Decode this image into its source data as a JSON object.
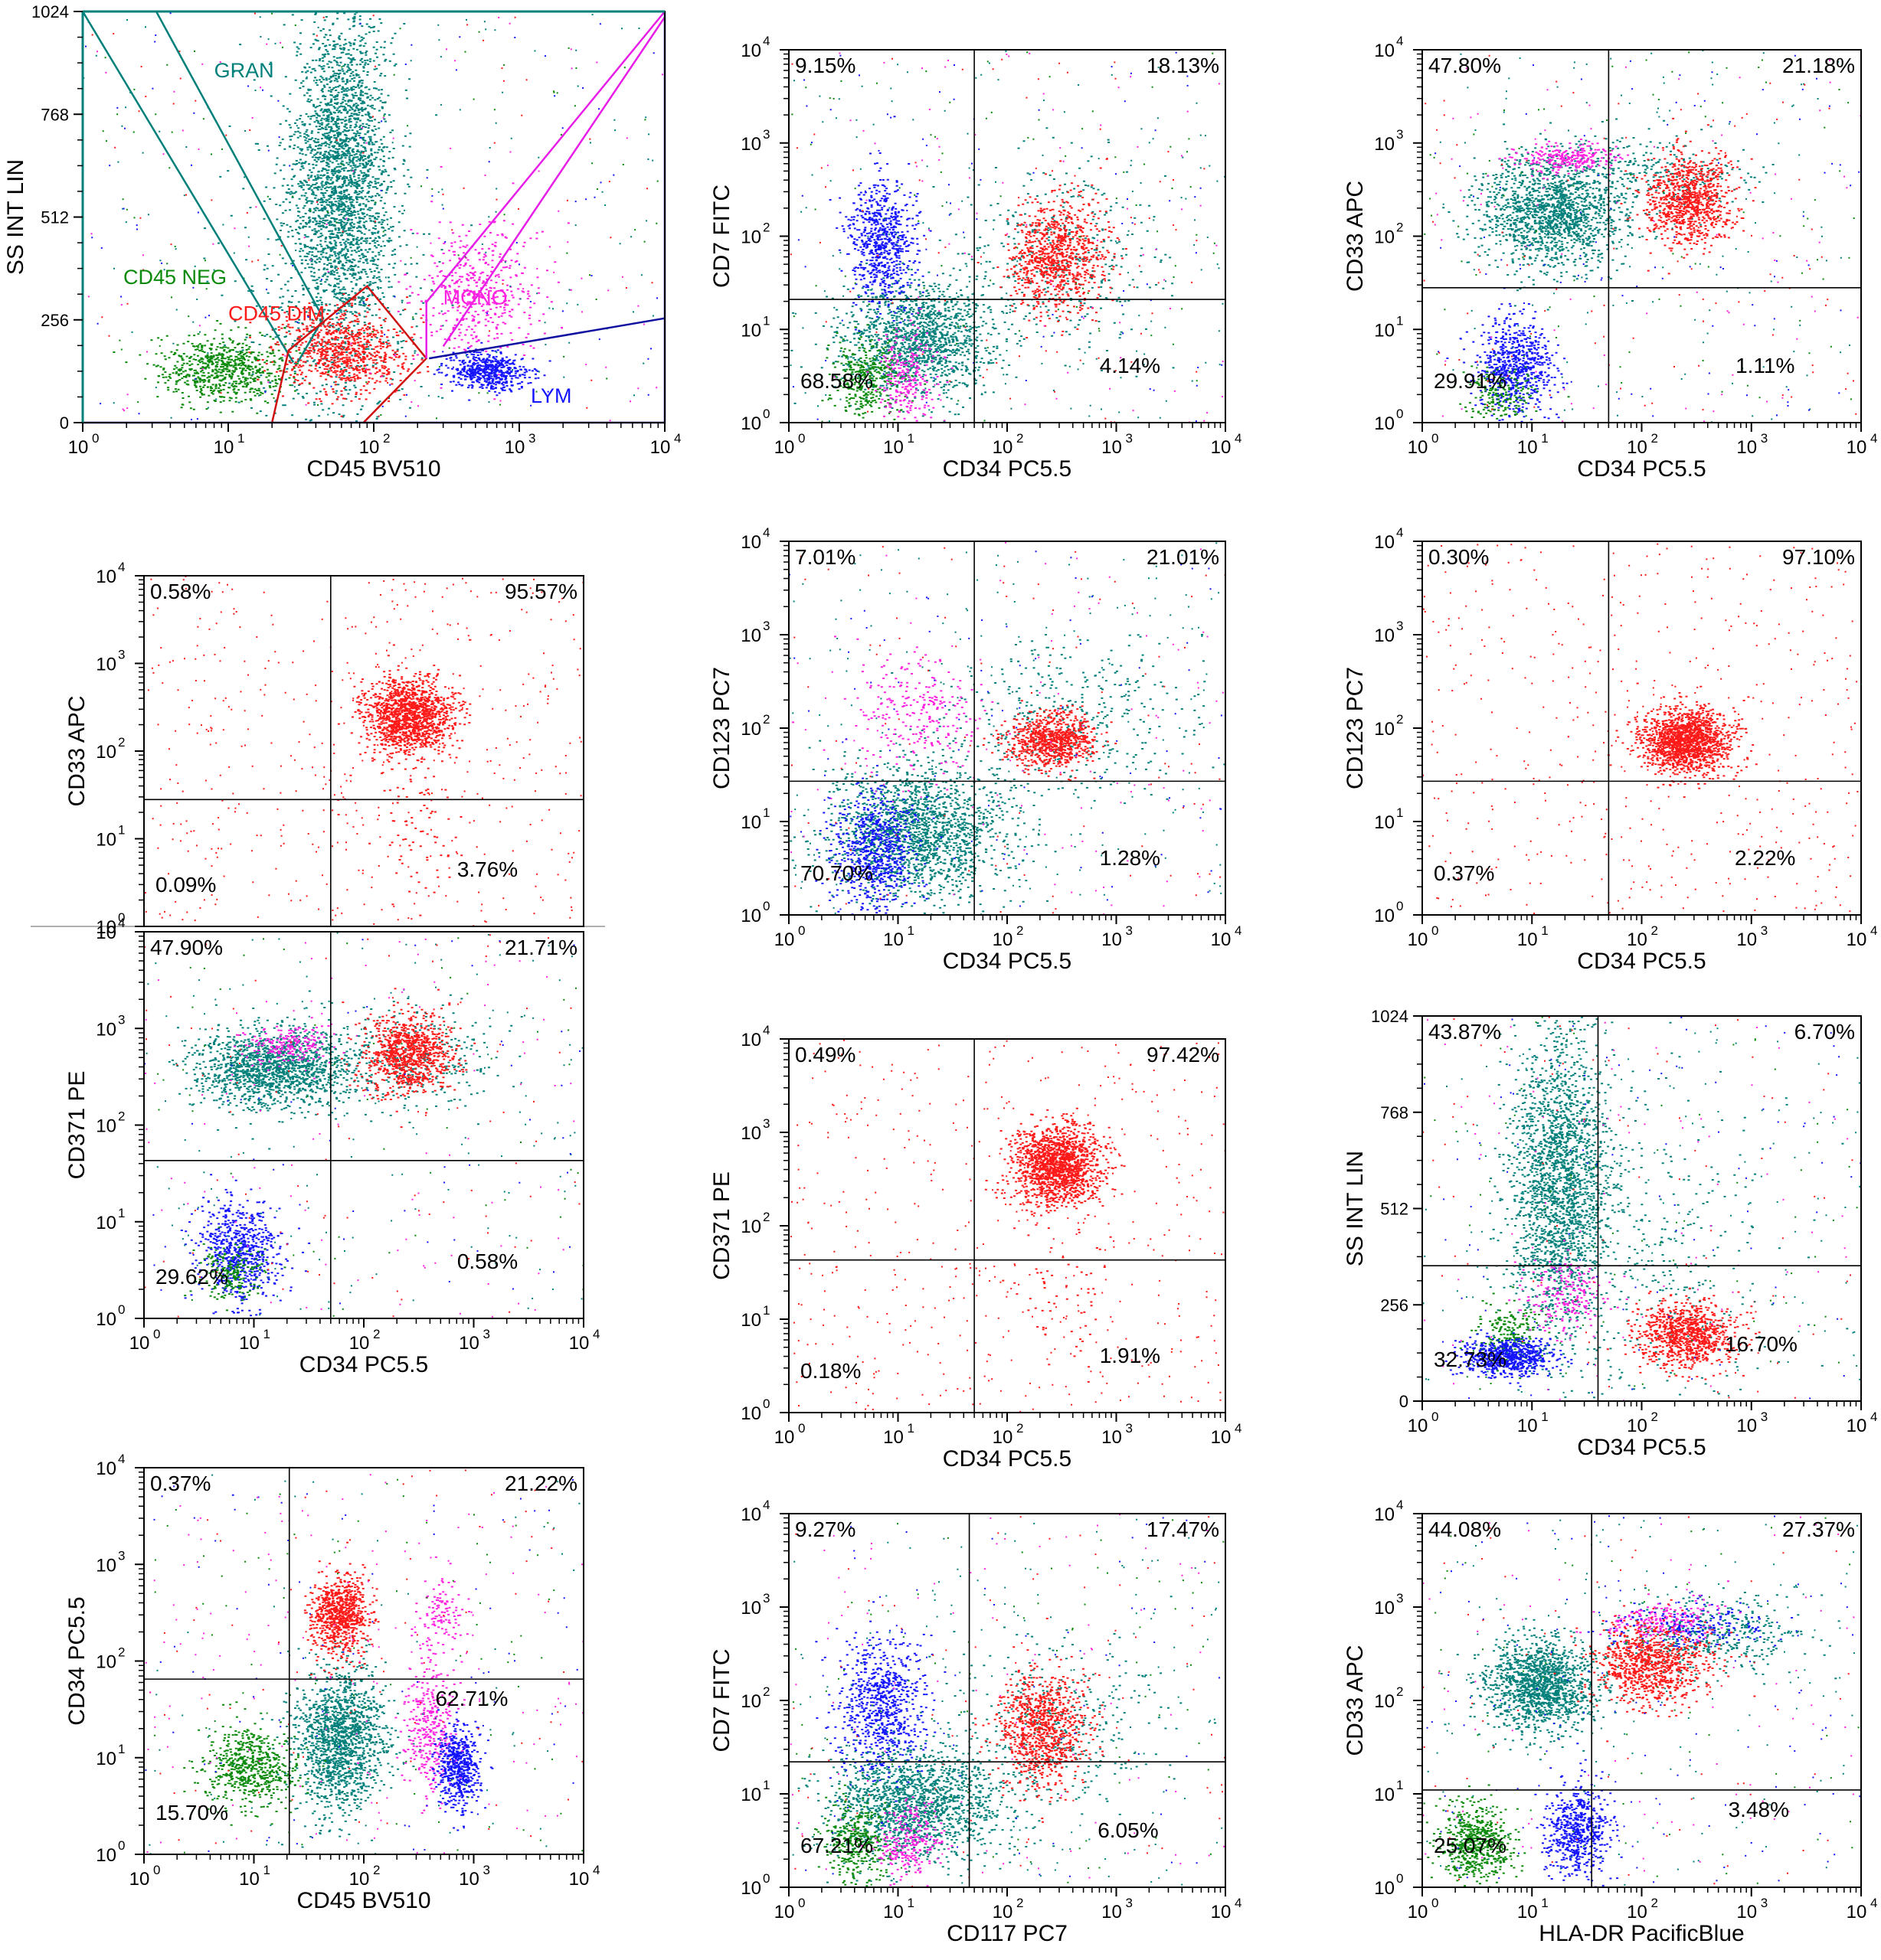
{
  "colors": {
    "GRAN": "#00807a",
    "NEG": "#0a8a0a",
    "DIM": "#ff1a1a",
    "MONO": "#ff22e0",
    "LYM": "#1414ff",
    "gate_gran": "#00807a",
    "gate_mono": "#e81ee8",
    "gate_dim": "#d01010",
    "gate_lym": "#1010a0",
    "axis": "#000000"
  },
  "chart_data": [
    {
      "type": "scatter",
      "id": "p1",
      "xlabel": "CD45 BV510",
      "ylabel": "SS INT LIN",
      "xscale": "log",
      "yscale": "lin",
      "xlim": [
        1,
        10000
      ],
      "ylim": [
        0,
        1024
      ],
      "xticks": [
        {
          "v": 1,
          "m": "10",
          "e": "0"
        },
        {
          "v": 10,
          "m": "10",
          "e": "1"
        },
        {
          "v": 100,
          "m": "10",
          "e": "2"
        },
        {
          "v": 1000,
          "m": "10",
          "e": "3"
        },
        {
          "v": 10000,
          "m": "10",
          "e": "4"
        }
      ],
      "yticks": [
        {
          "v": 0,
          "t": "0"
        },
        {
          "v": 256,
          "t": "256"
        },
        {
          "v": 512,
          "t": "512"
        },
        {
          "v": 768,
          "t": "768"
        },
        {
          "v": 1024,
          "t": "1024"
        }
      ],
      "frame_color": "#00807a",
      "gates": [
        {
          "name": "GRAN",
          "color": "gate_gran",
          "points": [
            [
              1,
              1024
            ],
            [
              3.2,
              1024
            ],
            [
              45,
              260
            ],
            [
              30,
              150
            ]
          ]
        },
        {
          "name": "GRAN-NEG",
          "color": "gate_gran",
          "points": [
            [
              1,
              1024
            ],
            [
              28,
              150
            ]
          ]
        },
        {
          "name": "DIM",
          "color": "gate_dim",
          "points": [
            [
              20,
              0
            ],
            [
              26,
              180
            ],
            [
              90,
              340
            ],
            [
              230,
              160
            ],
            [
              85,
              0
            ]
          ]
        },
        {
          "name": "MONO",
          "color": "gate_mono",
          "points": [
            [
              230,
              160
            ],
            [
              230,
              300
            ],
            [
              10000,
              1024
            ]
          ]
        },
        {
          "name": "MONO-LOW",
          "color": "gate_mono",
          "points": [
            [
              300,
              190
            ],
            [
              10000,
              1010
            ]
          ]
        },
        {
          "name": "LYM",
          "color": "gate_lym",
          "points": [
            [
              240,
              160
            ],
            [
              10000,
              260
            ]
          ]
        },
        {
          "name": "LYM-BOTTOM",
          "color": "gate_lym",
          "points": [
            [
              1,
              0
            ],
            [
              10000,
              0
            ],
            [
              10000,
              1024
            ]
          ]
        }
      ],
      "gate_labels": [
        {
          "text": "GRAN",
          "color": "GRAN",
          "x": 8,
          "y": 860
        },
        {
          "text": "CD45 NEG",
          "color": "NEG",
          "x": 1.9,
          "y": 345
        },
        {
          "text": "CD45 DIM",
          "color": "DIM",
          "x": 10,
          "y": 255
        },
        {
          "text": "MONO",
          "color": "MONO",
          "x": 300,
          "y": 295
        },
        {
          "text": "LYM",
          "color": "LYM",
          "x": 1200,
          "y": 50
        }
      ],
      "populations": [
        {
          "color": "GRAN",
          "x": 60,
          "y": 620,
          "sx": 0.17,
          "sy": 210,
          "n": 2600
        },
        {
          "color": "GRAN",
          "x": 45,
          "y": 300,
          "sx": 0.35,
          "sy": 220,
          "n": 500
        },
        {
          "color": "NEG",
          "x": 9,
          "y": 135,
          "sx": 0.22,
          "sy": 40,
          "n": 700
        },
        {
          "color": "DIM",
          "x": 60,
          "y": 180,
          "sx": 0.22,
          "sy": 50,
          "n": 800
        },
        {
          "color": "MONO",
          "x": 500,
          "y": 330,
          "sx": 0.22,
          "sy": 80,
          "n": 450
        },
        {
          "color": "LYM",
          "x": 600,
          "y": 130,
          "sx": 0.13,
          "sy": 22,
          "n": 550
        }
      ]
    },
    {
      "type": "scatter",
      "id": "p2",
      "xlabel": "CD34 PC5.5",
      "ylabel": "CD7 FITC",
      "xscale": "log",
      "yscale": "log",
      "xlim": [
        1,
        10000
      ],
      "ylim": [
        1,
        10000
      ],
      "quadrant": {
        "x": 50,
        "y": 21
      },
      "quadrant_labels": {
        "ul": "9.15%",
        "ur": "18.13%",
        "ll": "68.58%",
        "lr": "4.14%"
      },
      "populations": [
        {
          "color": "GRAN",
          "x": 15,
          "y": 8,
          "sx": 0.35,
          "sy": 0.3,
          "n": 1400
        },
        {
          "color": "GRAN",
          "x": 300,
          "y": 60,
          "sx": 0.45,
          "sy": 0.5,
          "n": 350
        },
        {
          "color": "LYM",
          "x": 7,
          "y": 90,
          "sx": 0.15,
          "sy": 0.33,
          "n": 700
        },
        {
          "color": "NEG",
          "x": 5,
          "y": 3,
          "sx": 0.16,
          "sy": 0.2,
          "n": 350
        },
        {
          "color": "MONO",
          "x": 12,
          "y": 3,
          "sx": 0.12,
          "sy": 0.25,
          "n": 250
        },
        {
          "color": "DIM",
          "x": 280,
          "y": 60,
          "sx": 0.22,
          "sy": 0.3,
          "n": 900
        }
      ]
    },
    {
      "type": "scatter",
      "id": "p3",
      "xlabel": "CD34 PC5.5",
      "ylabel": "CD33 APC",
      "xscale": "log",
      "yscale": "log",
      "xlim": [
        1,
        10000
      ],
      "ylim": [
        1,
        10000
      ],
      "quadrant": {
        "x": 50,
        "y": 28
      },
      "quadrant_labels": {
        "ul": "47.80%",
        "ur": "21.18%",
        "ll": "29.91%",
        "lr": "1.11%"
      },
      "populations": [
        {
          "color": "GRAN",
          "x": 15,
          "y": 180,
          "sx": 0.33,
          "sy": 0.3,
          "n": 1500
        },
        {
          "color": "GRAN",
          "x": 100,
          "y": 500,
          "sx": 0.5,
          "sy": 0.2,
          "n": 300
        },
        {
          "color": "MONO",
          "x": 22,
          "y": 700,
          "sx": 0.22,
          "sy": 0.08,
          "n": 250
        },
        {
          "color": "LYM",
          "x": 7,
          "y": 4,
          "sx": 0.17,
          "sy": 0.25,
          "n": 700
        },
        {
          "color": "NEG",
          "x": 5,
          "y": 2,
          "sx": 0.15,
          "sy": 0.15,
          "n": 180
        },
        {
          "color": "DIM",
          "x": 270,
          "y": 250,
          "sx": 0.2,
          "sy": 0.25,
          "n": 900
        }
      ]
    },
    {
      "type": "scatter",
      "id": "p4",
      "xlabel": "",
      "ylabel": "CD33 APC",
      "xscale": "log",
      "yscale": "log",
      "xlim": [
        1,
        10000
      ],
      "ylim": [
        1,
        10000
      ],
      "show_x_axis": false,
      "quadrant": {
        "x": 50,
        "y": 28
      },
      "quadrant_labels": {
        "ul": "0.58%",
        "ur": "95.57%",
        "ll": "0.09%",
        "lr": "3.76%"
      },
      "populations": [
        {
          "color": "DIM",
          "x": 250,
          "y": 250,
          "sx": 0.2,
          "sy": 0.22,
          "n": 1400
        },
        {
          "color": "DIM",
          "x": 300,
          "y": 15,
          "sx": 0.2,
          "sy": 0.4,
          "n": 80
        }
      ]
    },
    {
      "type": "scatter",
      "id": "p5",
      "xlabel": "CD34 PC5.5",
      "ylabel": "CD123 PC7",
      "xscale": "log",
      "yscale": "log",
      "xlim": [
        1,
        10000
      ],
      "ylim": [
        1,
        10000
      ],
      "quadrant": {
        "x": 50,
        "y": 27
      },
      "quadrant_labels": {
        "ul": "7.01%",
        "ur": "21.01%",
        "ll": "70.70%",
        "lr": "1.28%"
      },
      "populations": [
        {
          "color": "GRAN",
          "x": 15,
          "y": 8,
          "sx": 0.4,
          "sy": 0.35,
          "n": 1700
        },
        {
          "color": "GRAN",
          "x": 400,
          "y": 120,
          "sx": 0.55,
          "sy": 0.4,
          "n": 400
        },
        {
          "color": "MONO",
          "x": 15,
          "y": 150,
          "sx": 0.3,
          "sy": 0.3,
          "n": 250
        },
        {
          "color": "LYM",
          "x": 6,
          "y": 5,
          "sx": 0.2,
          "sy": 0.3,
          "n": 700
        },
        {
          "color": "DIM",
          "x": 250,
          "y": 75,
          "sx": 0.2,
          "sy": 0.15,
          "n": 800
        }
      ]
    },
    {
      "type": "scatter",
      "id": "p6",
      "xlabel": "CD34 PC5.5",
      "ylabel": "CD123 PC7",
      "xscale": "log",
      "yscale": "log",
      "xlim": [
        1,
        10000
      ],
      "ylim": [
        1,
        10000
      ],
      "quadrant": {
        "x": 50,
        "y": 27
      },
      "quadrant_labels": {
        "ul": "0.30%",
        "ur": "97.10%",
        "ll": "0.37%",
        "lr": "2.22%"
      },
      "populations": [
        {
          "color": "DIM",
          "x": 250,
          "y": 75,
          "sx": 0.2,
          "sy": 0.17,
          "n": 1500
        }
      ]
    },
    {
      "type": "scatter",
      "id": "p7",
      "xlabel": "CD34 PC5.5",
      "ylabel": "CD371 PE",
      "xscale": "log",
      "yscale": "log",
      "xlim": [
        1,
        10000
      ],
      "ylim": [
        1,
        10000
      ],
      "quadrant": {
        "x": 50,
        "y": 43
      },
      "quadrant_labels": {
        "ul": "47.90%",
        "ur": "21.71%",
        "ll": "29.62%",
        "lr": "0.58%"
      },
      "populations": [
        {
          "color": "GRAN",
          "x": 15,
          "y": 400,
          "sx": 0.35,
          "sy": 0.2,
          "n": 1500
        },
        {
          "color": "GRAN",
          "x": 300,
          "y": 500,
          "sx": 0.4,
          "sy": 0.25,
          "n": 300
        },
        {
          "color": "MONO",
          "x": 20,
          "y": 700,
          "sx": 0.2,
          "sy": 0.1,
          "n": 200
        },
        {
          "color": "LYM",
          "x": 7,
          "y": 5,
          "sx": 0.18,
          "sy": 0.25,
          "n": 700
        },
        {
          "color": "NEG",
          "x": 6,
          "y": 3,
          "sx": 0.15,
          "sy": 0.15,
          "n": 200
        },
        {
          "color": "DIM",
          "x": 250,
          "y": 550,
          "sx": 0.2,
          "sy": 0.2,
          "n": 900
        }
      ]
    },
    {
      "type": "scatter",
      "id": "p8",
      "xlabel": "CD34 PC5.5",
      "ylabel": "CD371 PE",
      "xscale": "log",
      "yscale": "log",
      "xlim": [
        1,
        10000
      ],
      "ylim": [
        1,
        10000
      ],
      "quadrant": {
        "x": 50,
        "y": 43
      },
      "quadrant_labels": {
        "ul": "0.49%",
        "ur": "97.42%",
        "ll": "0.18%",
        "lr": "1.91%"
      },
      "populations": [
        {
          "color": "DIM",
          "x": 280,
          "y": 450,
          "sx": 0.2,
          "sy": 0.22,
          "n": 1500
        },
        {
          "color": "DIM",
          "x": 300,
          "y": 15,
          "sx": 0.25,
          "sy": 0.4,
          "n": 60
        }
      ]
    },
    {
      "type": "scatter",
      "id": "p9",
      "xlabel": "CD34 PC5.5",
      "ylabel": "SS INT LIN",
      "xscale": "log",
      "yscale": "lin",
      "xlim": [
        1,
        10000
      ],
      "ylim": [
        0,
        1024
      ],
      "yticks": [
        {
          "v": 0,
          "t": "0"
        },
        {
          "v": 256,
          "t": "256"
        },
        {
          "v": 512,
          "t": "512"
        },
        {
          "v": 768,
          "t": "768"
        },
        {
          "v": 1024,
          "t": "1024"
        }
      ],
      "quadrant": {
        "x": 40,
        "y": 360
      },
      "quadrant_labels": {
        "ul": "43.87%",
        "ur": "6.70%",
        "ll": "32.73%",
        "lr": "16.70%"
      },
      "populations": [
        {
          "color": "GRAN",
          "x": 18,
          "y": 580,
          "sx": 0.22,
          "sy": 200,
          "n": 2200
        },
        {
          "color": "GRAN",
          "x": 150,
          "y": 380,
          "sx": 0.55,
          "sy": 250,
          "n": 350
        },
        {
          "color": "NEG",
          "x": 6,
          "y": 180,
          "sx": 0.15,
          "sy": 40,
          "n": 200
        },
        {
          "color": "MONO",
          "x": 20,
          "y": 280,
          "sx": 0.2,
          "sy": 50,
          "n": 200
        },
        {
          "color": "LYM",
          "x": 6,
          "y": 120,
          "sx": 0.2,
          "sy": 25,
          "n": 700
        },
        {
          "color": "DIM",
          "x": 250,
          "y": 180,
          "sx": 0.22,
          "sy": 45,
          "n": 900
        }
      ]
    },
    {
      "type": "scatter",
      "id": "p10",
      "xlabel": "CD45 BV510",
      "ylabel": "CD34 PC5.5",
      "xscale": "log",
      "yscale": "log",
      "xlim": [
        1,
        10000
      ],
      "ylim": [
        1,
        10000
      ],
      "quadrant": {
        "x": 21,
        "y": 65
      },
      "quadrant_labels": {
        "ul": "0.37%",
        "ur": "21.22%",
        "ll": "15.70%",
        "lr": "62.71%"
      },
      "lr_label_pos": "mid",
      "populations": [
        {
          "color": "GRAN",
          "x": 60,
          "y": 15,
          "sx": 0.2,
          "sy": 0.35,
          "n": 1500
        },
        {
          "color": "NEG",
          "x": 9,
          "y": 8,
          "sx": 0.2,
          "sy": 0.2,
          "n": 600
        },
        {
          "color": "DIM",
          "x": 60,
          "y": 300,
          "sx": 0.13,
          "sy": 0.2,
          "n": 800
        },
        {
          "color": "MONO",
          "x": 400,
          "y": 20,
          "sx": 0.12,
          "sy": 0.35,
          "n": 350
        },
        {
          "color": "MONO",
          "x": 500,
          "y": 300,
          "sx": 0.1,
          "sy": 0.2,
          "n": 120
        },
        {
          "color": "LYM",
          "x": 700,
          "y": 8,
          "sx": 0.1,
          "sy": 0.2,
          "n": 550
        }
      ]
    },
    {
      "type": "scatter",
      "id": "p11",
      "xlabel": "CD117 PC7",
      "ylabel": "CD7 FITC",
      "xscale": "log",
      "yscale": "log",
      "xlim": [
        1,
        10000
      ],
      "ylim": [
        1,
        10000
      ],
      "quadrant": {
        "x": 45,
        "y": 22
      },
      "quadrant_labels": {
        "ul": "9.27%",
        "ur": "17.47%",
        "ll": "67.21%",
        "lr": "6.05%"
      },
      "populations": [
        {
          "color": "GRAN",
          "x": 15,
          "y": 8,
          "sx": 0.4,
          "sy": 0.3,
          "n": 1600
        },
        {
          "color": "GRAN",
          "x": 300,
          "y": 60,
          "sx": 0.45,
          "sy": 0.45,
          "n": 350
        },
        {
          "color": "LYM",
          "x": 7,
          "y": 90,
          "sx": 0.2,
          "sy": 0.35,
          "n": 750
        },
        {
          "color": "NEG",
          "x": 4,
          "y": 3,
          "sx": 0.15,
          "sy": 0.2,
          "n": 350
        },
        {
          "color": "MONO",
          "x": 12,
          "y": 3,
          "sx": 0.15,
          "sy": 0.2,
          "n": 250
        },
        {
          "color": "DIM",
          "x": 200,
          "y": 50,
          "sx": 0.2,
          "sy": 0.3,
          "n": 900
        }
      ]
    },
    {
      "type": "scatter",
      "id": "p12",
      "xlabel": "HLA-DR PacificBlue",
      "ylabel": "CD33 APC",
      "xscale": "log",
      "yscale": "log",
      "xlim": [
        1,
        10000
      ],
      "ylim": [
        1,
        10000
      ],
      "quadrant": {
        "x": 35,
        "y": 11
      },
      "quadrant_labels": {
        "ul": "44.08%",
        "ur": "27.37%",
        "ll": "25.07%",
        "lr": "3.48%"
      },
      "lr_label_pos": "mid",
      "populations": [
        {
          "color": "GRAN",
          "x": 12,
          "y": 150,
          "sx": 0.25,
          "sy": 0.25,
          "n": 1400
        },
        {
          "color": "GRAN",
          "x": 400,
          "y": 500,
          "sx": 0.4,
          "sy": 0.2,
          "n": 400
        },
        {
          "color": "NEG",
          "x": 3,
          "y": 3,
          "sx": 0.17,
          "sy": 0.2,
          "n": 600
        },
        {
          "color": "LYM",
          "x": 25,
          "y": 4,
          "sx": 0.15,
          "sy": 0.25,
          "n": 600
        },
        {
          "color": "LYM",
          "x": 300,
          "y": 600,
          "sx": 0.35,
          "sy": 0.12,
          "n": 200
        },
        {
          "color": "MONO",
          "x": 150,
          "y": 700,
          "sx": 0.3,
          "sy": 0.12,
          "n": 200
        },
        {
          "color": "DIM",
          "x": 120,
          "y": 250,
          "sx": 0.25,
          "sy": 0.22,
          "n": 900
        }
      ]
    }
  ]
}
